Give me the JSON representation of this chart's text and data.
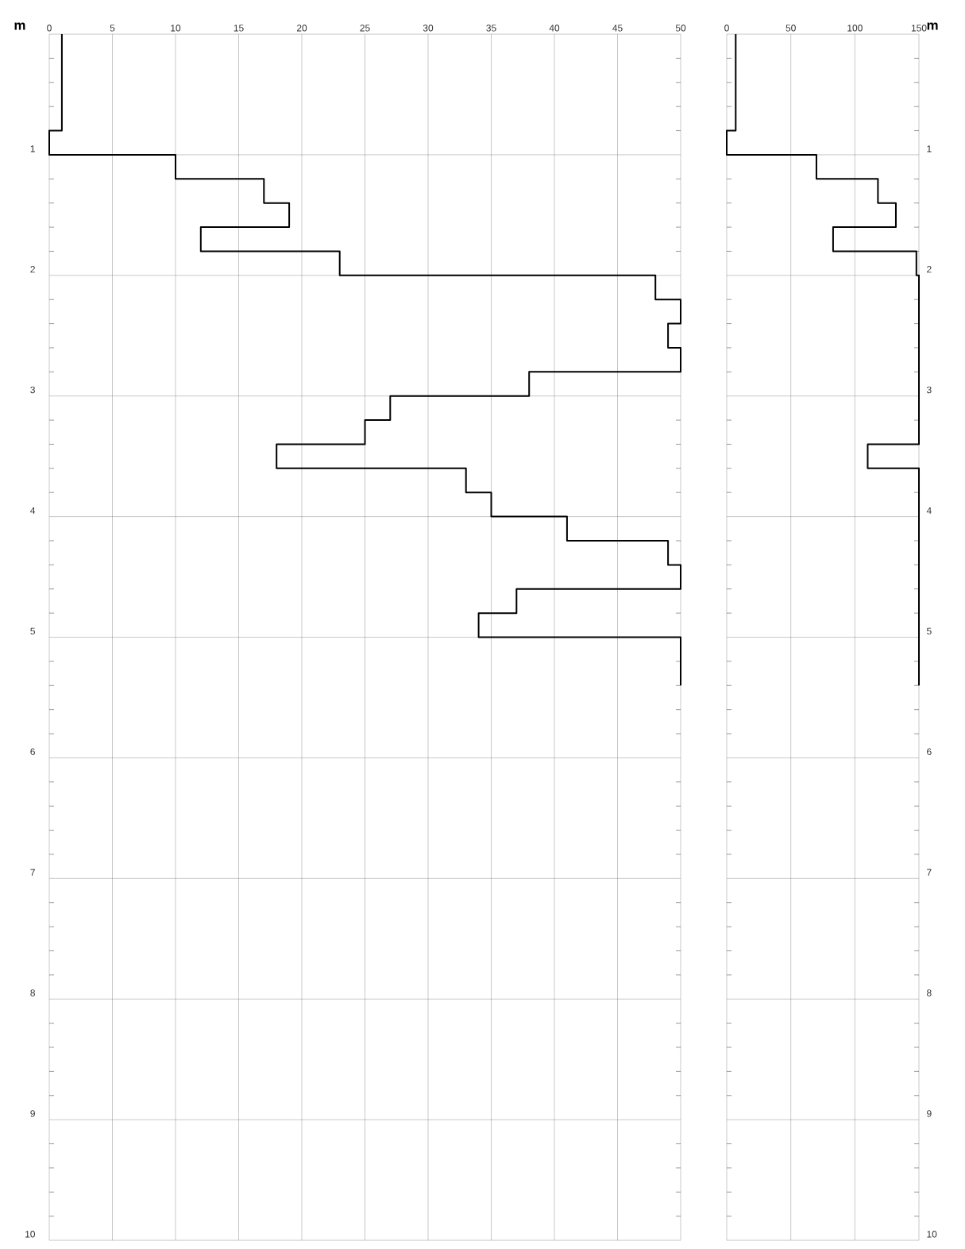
{
  "chart_data": [
    {
      "type": "line",
      "ylabel": "m",
      "x": [
        1,
        1,
        0,
        0,
        10,
        10,
        17,
        17,
        19,
        19,
        12,
        12,
        23,
        23,
        48,
        48,
        50,
        50,
        49,
        49,
        50,
        50,
        38,
        38,
        27,
        27,
        25,
        25,
        18,
        18,
        33,
        33,
        35,
        35,
        41,
        41,
        49,
        49,
        50,
        50,
        37,
        37,
        34,
        34,
        50,
        50
      ],
      "values": [
        0,
        0.8,
        0.8,
        1.0,
        1.0,
        1.2,
        1.2,
        1.4,
        1.4,
        1.6,
        1.6,
        1.8,
        1.8,
        2.0,
        2.0,
        2.2,
        2.2,
        2.4,
        2.4,
        2.6,
        2.6,
        2.8,
        2.8,
        3.0,
        3.0,
        3.2,
        3.2,
        3.4,
        3.4,
        3.6,
        3.6,
        3.8,
        3.8,
        4.0,
        4.0,
        4.2,
        4.2,
        4.4,
        4.4,
        4.6,
        4.6,
        4.8,
        4.8,
        5.0,
        5.0,
        5.4
      ],
      "color": "#000000",
      "xlim": [
        0,
        50
      ],
      "xticks": [
        0,
        5,
        10,
        15,
        20,
        25,
        30,
        35,
        40,
        45,
        50
      ],
      "ylim": [
        10,
        0
      ],
      "yticks": [
        {
          "value": 0,
          "label": null
        },
        1,
        2,
        3,
        4,
        5,
        6,
        7,
        8,
        9,
        10
      ],
      "grid": true
    },
    {
      "type": "line",
      "y2label": "m",
      "series": [
        {
          "axis": "y2",
          "color": "#000000",
          "x": [
            7,
            7,
            0,
            0,
            70,
            70,
            118,
            118,
            132,
            132,
            83,
            83,
            148,
            148,
            150,
            150,
            110,
            110,
            150,
            150
          ],
          "values": [
            0,
            0.8,
            0.8,
            1.0,
            1.0,
            1.2,
            1.2,
            1.4,
            1.4,
            1.6,
            1.6,
            1.8,
            1.8,
            2.0,
            2.0,
            3.4,
            3.4,
            3.6,
            3.6,
            5.4
          ]
        }
      ],
      "xlim": [
        0,
        150
      ],
      "xticks": [
        0,
        50,
        100,
        150
      ],
      "y2lim": [
        10,
        0
      ],
      "y2ticks": [
        {
          "value": 0,
          "label": null
        },
        1,
        2,
        3,
        4,
        5,
        6,
        7,
        8,
        9,
        10
      ],
      "grid": true
    }
  ]
}
